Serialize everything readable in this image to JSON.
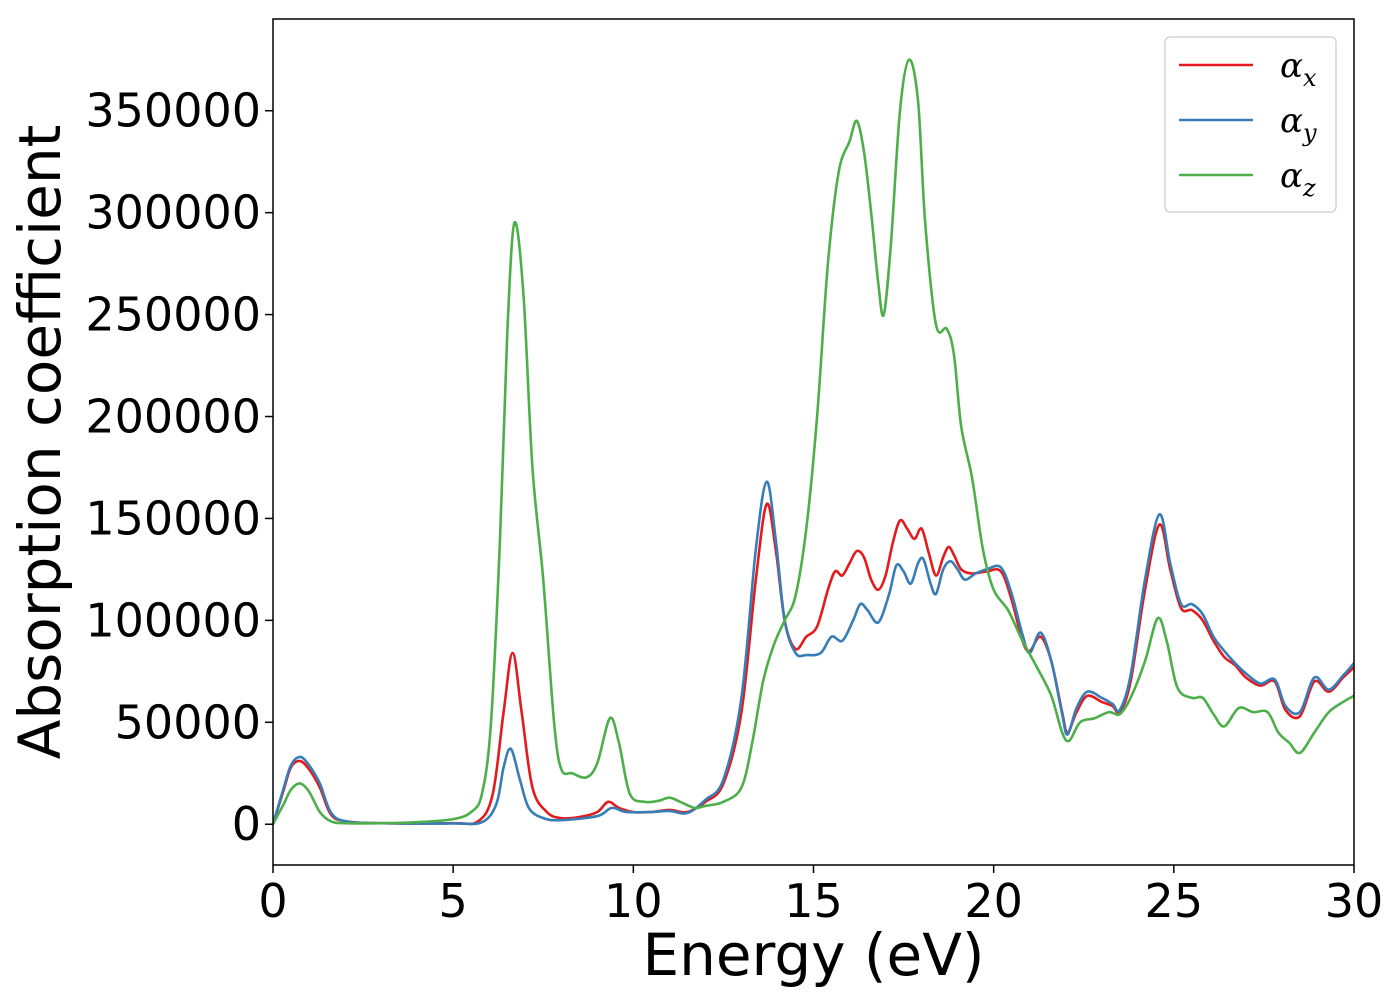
{
  "chart_data": {
    "type": "line",
    "xlabel": "Energy (eV)",
    "ylabel": "Absorption coefficient",
    "xlim": [
      0,
      30
    ],
    "ylim": [
      -20000,
      395000
    ],
    "xticks": [
      0,
      5,
      10,
      15,
      20,
      25,
      30
    ],
    "yticks": [
      0,
      50000,
      100000,
      150000,
      200000,
      250000,
      300000,
      350000
    ],
    "grid": false,
    "legend_position": "top-right",
    "series": [
      {
        "name": "α_x",
        "label_base": "α",
        "label_sub": "x",
        "color": "#e41a1c",
        "points": [
          [
            0,
            0
          ],
          [
            0.3,
            17000
          ],
          [
            0.5,
            28000
          ],
          [
            0.75,
            31000
          ],
          [
            1,
            27000
          ],
          [
            1.3,
            18000
          ],
          [
            1.6,
            5000
          ],
          [
            2,
            1500
          ],
          [
            3,
            500
          ],
          [
            5,
            500
          ],
          [
            5.7,
            1500
          ],
          [
            6.1,
            15000
          ],
          [
            6.4,
            55000
          ],
          [
            6.65,
            84000
          ],
          [
            6.9,
            55000
          ],
          [
            7.2,
            18000
          ],
          [
            7.6,
            6000
          ],
          [
            8,
            3000
          ],
          [
            8.5,
            3500
          ],
          [
            9,
            6000
          ],
          [
            9.3,
            11000
          ],
          [
            9.6,
            8000
          ],
          [
            10,
            6000
          ],
          [
            10.5,
            6000
          ],
          [
            11,
            7000
          ],
          [
            11.5,
            6000
          ],
          [
            12,
            11000
          ],
          [
            12.5,
            20000
          ],
          [
            13,
            55000
          ],
          [
            13.4,
            120000
          ],
          [
            13.7,
            157000
          ],
          [
            13.95,
            135000
          ],
          [
            14.2,
            100000
          ],
          [
            14.5,
            86000
          ],
          [
            14.8,
            92000
          ],
          [
            15.1,
            97000
          ],
          [
            15.4,
            115000
          ],
          [
            15.6,
            124000
          ],
          [
            15.8,
            122000
          ],
          [
            16,
            128000
          ],
          [
            16.2,
            134000
          ],
          [
            16.4,
            131000
          ],
          [
            16.6,
            120000
          ],
          [
            16.8,
            115000
          ],
          [
            17,
            122000
          ],
          [
            17.2,
            138000
          ],
          [
            17.4,
            149000
          ],
          [
            17.6,
            145000
          ],
          [
            17.8,
            140000
          ],
          [
            18,
            145000
          ],
          [
            18.2,
            133000
          ],
          [
            18.4,
            122000
          ],
          [
            18.6,
            131000
          ],
          [
            18.75,
            136000
          ],
          [
            18.9,
            132000
          ],
          [
            19.1,
            125000
          ],
          [
            19.4,
            123000
          ],
          [
            19.8,
            124000
          ],
          [
            20.2,
            124000
          ],
          [
            20.5,
            110000
          ],
          [
            20.8,
            90000
          ],
          [
            21,
            85000
          ],
          [
            21.3,
            92000
          ],
          [
            21.6,
            80000
          ],
          [
            21.9,
            55000
          ],
          [
            22.05,
            45000
          ],
          [
            22.3,
            55000
          ],
          [
            22.6,
            63000
          ],
          [
            23,
            60000
          ],
          [
            23.3,
            58000
          ],
          [
            23.5,
            55000
          ],
          [
            23.8,
            70000
          ],
          [
            24.2,
            115000
          ],
          [
            24.6,
            147000
          ],
          [
            24.9,
            125000
          ],
          [
            25.2,
            106000
          ],
          [
            25.5,
            105000
          ],
          [
            25.8,
            100000
          ],
          [
            26.1,
            90000
          ],
          [
            26.4,
            82000
          ],
          [
            26.7,
            78000
          ],
          [
            27,
            72000
          ],
          [
            27.4,
            68000
          ],
          [
            27.8,
            70000
          ],
          [
            28.1,
            56000
          ],
          [
            28.5,
            53000
          ],
          [
            28.9,
            70000
          ],
          [
            29.3,
            65000
          ],
          [
            29.7,
            72000
          ],
          [
            30,
            77000
          ]
        ]
      },
      {
        "name": "α_y",
        "label_base": "α",
        "label_sub": "y",
        "color": "#377eb8",
        "points": [
          [
            0,
            0
          ],
          [
            0.3,
            18000
          ],
          [
            0.5,
            29000
          ],
          [
            0.75,
            33000
          ],
          [
            1,
            29000
          ],
          [
            1.3,
            20000
          ],
          [
            1.6,
            6000
          ],
          [
            2,
            1500
          ],
          [
            3,
            500
          ],
          [
            5,
            400
          ],
          [
            5.8,
            1000
          ],
          [
            6.2,
            10000
          ],
          [
            6.4,
            28000
          ],
          [
            6.6,
            37000
          ],
          [
            6.85,
            22000
          ],
          [
            7.1,
            8000
          ],
          [
            7.5,
            3000
          ],
          [
            8,
            2000
          ],
          [
            9,
            4000
          ],
          [
            9.4,
            8000
          ],
          [
            9.8,
            6000
          ],
          [
            10.5,
            6000
          ],
          [
            11,
            6500
          ],
          [
            11.5,
            5500
          ],
          [
            12,
            12000
          ],
          [
            12.5,
            22000
          ],
          [
            13,
            62000
          ],
          [
            13.4,
            135000
          ],
          [
            13.7,
            168000
          ],
          [
            13.95,
            140000
          ],
          [
            14.2,
            100000
          ],
          [
            14.5,
            84000
          ],
          [
            14.8,
            83000
          ],
          [
            15.2,
            84000
          ],
          [
            15.5,
            92000
          ],
          [
            15.8,
            90000
          ],
          [
            16.1,
            100000
          ],
          [
            16.3,
            108000
          ],
          [
            16.5,
            105000
          ],
          [
            16.8,
            99000
          ],
          [
            17.1,
            113000
          ],
          [
            17.3,
            127000
          ],
          [
            17.5,
            124000
          ],
          [
            17.7,
            118000
          ],
          [
            17.9,
            128000
          ],
          [
            18.05,
            130000
          ],
          [
            18.25,
            118000
          ],
          [
            18.4,
            113000
          ],
          [
            18.6,
            125000
          ],
          [
            18.8,
            129000
          ],
          [
            19,
            125000
          ],
          [
            19.2,
            120000
          ],
          [
            19.5,
            123000
          ],
          [
            19.8,
            125000
          ],
          [
            20.2,
            126000
          ],
          [
            20.5,
            113000
          ],
          [
            20.8,
            93000
          ],
          [
            21,
            84000
          ],
          [
            21.3,
            94000
          ],
          [
            21.6,
            80000
          ],
          [
            21.9,
            54000
          ],
          [
            22.05,
            44000
          ],
          [
            22.3,
            57000
          ],
          [
            22.6,
            65000
          ],
          [
            23,
            62000
          ],
          [
            23.3,
            59000
          ],
          [
            23.5,
            56000
          ],
          [
            23.8,
            73000
          ],
          [
            24.2,
            120000
          ],
          [
            24.6,
            152000
          ],
          [
            24.9,
            128000
          ],
          [
            25.2,
            108000
          ],
          [
            25.5,
            108000
          ],
          [
            25.8,
            103000
          ],
          [
            26.1,
            92000
          ],
          [
            26.4,
            85000
          ],
          [
            26.7,
            79000
          ],
          [
            27,
            74000
          ],
          [
            27.4,
            69000
          ],
          [
            27.8,
            71000
          ],
          [
            28.1,
            58000
          ],
          [
            28.5,
            55000
          ],
          [
            28.9,
            72000
          ],
          [
            29.3,
            66000
          ],
          [
            29.7,
            73000
          ],
          [
            30,
            79000
          ]
        ]
      },
      {
        "name": "α_z",
        "label_base": "α",
        "label_sub": "z",
        "color": "#4daf4a",
        "points": [
          [
            0,
            0
          ],
          [
            0.3,
            10000
          ],
          [
            0.5,
            17000
          ],
          [
            0.75,
            20000
          ],
          [
            1,
            16000
          ],
          [
            1.3,
            6000
          ],
          [
            1.6,
            1500
          ],
          [
            2,
            500
          ],
          [
            3,
            500
          ],
          [
            4,
            1000
          ],
          [
            5,
            2500
          ],
          [
            5.5,
            6000
          ],
          [
            5.8,
            15000
          ],
          [
            6.05,
            50000
          ],
          [
            6.3,
            140000
          ],
          [
            6.5,
            240000
          ],
          [
            6.7,
            295000
          ],
          [
            6.95,
            260000
          ],
          [
            7.2,
            175000
          ],
          [
            7.5,
            120000
          ],
          [
            7.8,
            50000
          ],
          [
            8,
            27000
          ],
          [
            8.3,
            25000
          ],
          [
            8.7,
            23000
          ],
          [
            9,
            30000
          ],
          [
            9.35,
            52000
          ],
          [
            9.6,
            40000
          ],
          [
            9.9,
            15000
          ],
          [
            10.3,
            11000
          ],
          [
            10.7,
            11500
          ],
          [
            11,
            13000
          ],
          [
            11.3,
            11000
          ],
          [
            11.7,
            8000
          ],
          [
            12,
            9000
          ],
          [
            12.5,
            11000
          ],
          [
            13,
            18000
          ],
          [
            13.3,
            40000
          ],
          [
            13.6,
            70000
          ],
          [
            13.9,
            88000
          ],
          [
            14.2,
            100000
          ],
          [
            14.5,
            112000
          ],
          [
            14.8,
            145000
          ],
          [
            15.1,
            200000
          ],
          [
            15.4,
            275000
          ],
          [
            15.7,
            320000
          ],
          [
            16,
            335000
          ],
          [
            16.2,
            345000
          ],
          [
            16.4,
            330000
          ],
          [
            16.6,
            300000
          ],
          [
            16.8,
            265000
          ],
          [
            16.95,
            250000
          ],
          [
            17.15,
            285000
          ],
          [
            17.4,
            350000
          ],
          [
            17.65,
            375000
          ],
          [
            17.9,
            355000
          ],
          [
            18.1,
            295000
          ],
          [
            18.4,
            245000
          ],
          [
            18.7,
            243000
          ],
          [
            18.9,
            230000
          ],
          [
            19.1,
            195000
          ],
          [
            19.4,
            170000
          ],
          [
            19.7,
            135000
          ],
          [
            20,
            115000
          ],
          [
            20.4,
            105000
          ],
          [
            20.8,
            90000
          ],
          [
            21.2,
            77000
          ],
          [
            21.6,
            63000
          ],
          [
            21.9,
            45000
          ],
          [
            22.1,
            41000
          ],
          [
            22.4,
            50000
          ],
          [
            22.8,
            52000
          ],
          [
            23.2,
            55000
          ],
          [
            23.5,
            54000
          ],
          [
            23.8,
            62000
          ],
          [
            24.2,
            80000
          ],
          [
            24.55,
            101000
          ],
          [
            24.8,
            90000
          ],
          [
            25.1,
            67000
          ],
          [
            25.5,
            62000
          ],
          [
            25.8,
            62000
          ],
          [
            26.1,
            54000
          ],
          [
            26.4,
            48000
          ],
          [
            26.8,
            57000
          ],
          [
            27.2,
            55000
          ],
          [
            27.6,
            55000
          ],
          [
            27.9,
            45000
          ],
          [
            28.2,
            40000
          ],
          [
            28.5,
            35000
          ],
          [
            28.9,
            45000
          ],
          [
            29.3,
            55000
          ],
          [
            29.7,
            60000
          ],
          [
            30,
            63000
          ]
        ]
      }
    ]
  }
}
